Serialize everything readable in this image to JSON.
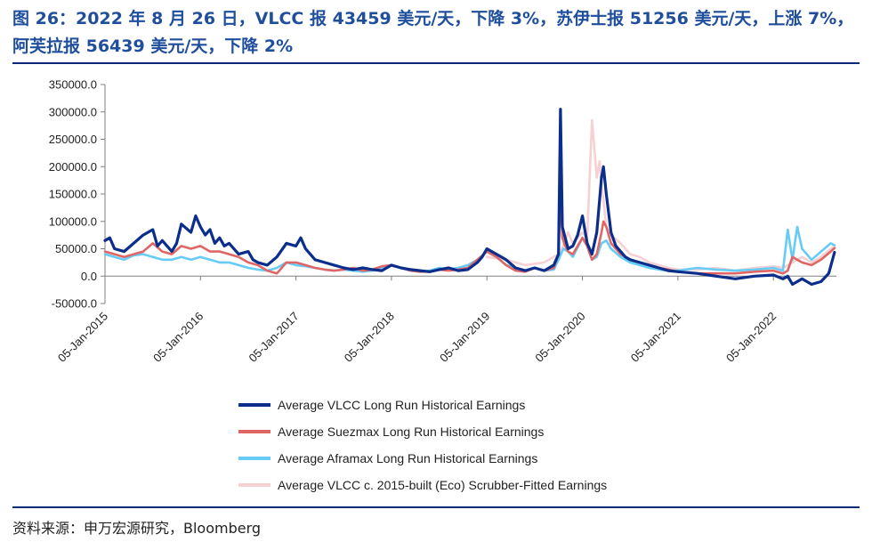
{
  "title": "图 26：2022 年 8 月 26 日，VLCC 报 43459 美元/天，下降 3%，苏伊士报 51256 美元/天，上涨 7%，阿芙拉报 56439 美元/天，下降 2%",
  "source": "资料来源：申万宏源研究，Bloomberg",
  "colors": {
    "title": "#1F4E9C",
    "rule": "#0A2A78",
    "vlcc": "#0B2E8C",
    "suezmax": "#E06666",
    "aframax": "#66CCF5",
    "eco": "#F6D0D3"
  },
  "chart_data": {
    "type": "line",
    "ylim": [
      -50000,
      350000
    ],
    "yticks": [
      "350000.0",
      "300000.0",
      "250000.0",
      "200000.0",
      "150000.0",
      "100000.0",
      "50000.0",
      "0.0",
      "-50000.0"
    ],
    "ytick_values": [
      350000,
      300000,
      250000,
      200000,
      150000,
      100000,
      50000,
      0,
      -50000
    ],
    "xlim": [
      2015.0,
      2022.66
    ],
    "xticks": [
      "05-Jan-2015",
      "05-Jan-2016",
      "05-Jan-2017",
      "05-Jan-2018",
      "05-Jan-2019",
      "05-Jan-2020",
      "05-Jan-2021",
      "05-Jan-2022"
    ],
    "xtick_values": [
      2015,
      2016,
      2017,
      2018,
      2019,
      2020,
      2021,
      2022
    ],
    "legend": [
      "Average VLCC Long Run Historical Earnings",
      "Average Suezmax Long Run Historical Earnings",
      "Average Aframax Long Run Historical Earnings",
      "Average VLCC c. 2015-built (Eco) Scrubber-Fitted Earnings"
    ],
    "series": [
      {
        "name": "Average VLCC Long Run Historical Earnings",
        "color": "#0B2E8C",
        "width": 3.2,
        "x": [
          2015.0,
          2015.05,
          2015.1,
          2015.2,
          2015.3,
          2015.4,
          2015.5,
          2015.55,
          2015.6,
          2015.7,
          2015.75,
          2015.8,
          2015.9,
          2015.95,
          2016.0,
          2016.05,
          2016.1,
          2016.15,
          2016.2,
          2016.25,
          2016.3,
          2016.4,
          2016.5,
          2016.55,
          2016.6,
          2016.7,
          2016.8,
          2016.9,
          2017.0,
          2017.05,
          2017.1,
          2017.15,
          2017.2,
          2017.3,
          2017.4,
          2017.5,
          2017.6,
          2017.7,
          2017.8,
          2017.9,
          2018.0,
          2018.1,
          2018.2,
          2018.3,
          2018.4,
          2018.5,
          2018.6,
          2018.7,
          2018.8,
          2018.9,
          2018.95,
          2019.0,
          2019.1,
          2019.2,
          2019.3,
          2019.4,
          2019.5,
          2019.6,
          2019.7,
          2019.75,
          2019.77,
          2019.79,
          2019.82,
          2019.85,
          2019.9,
          2019.95,
          2020.0,
          2020.05,
          2020.1,
          2020.15,
          2020.2,
          2020.22,
          2020.25,
          2020.3,
          2020.35,
          2020.4,
          2020.45,
          2020.5,
          2020.6,
          2020.7,
          2020.8,
          2020.9,
          2021.0,
          2021.2,
          2021.4,
          2021.6,
          2021.8,
          2022.0,
          2022.1,
          2022.15,
          2022.2,
          2022.3,
          2022.4,
          2022.5,
          2022.58,
          2022.64
        ],
        "y": [
          65000,
          70000,
          50000,
          45000,
          60000,
          75000,
          85000,
          55000,
          65000,
          45000,
          60000,
          95000,
          80000,
          110000,
          90000,
          75000,
          85000,
          60000,
          70000,
          55000,
          60000,
          40000,
          45000,
          30000,
          25000,
          20000,
          35000,
          60000,
          55000,
          70000,
          50000,
          40000,
          30000,
          25000,
          20000,
          15000,
          12000,
          15000,
          12000,
          10000,
          20000,
          15000,
          12000,
          10000,
          8000,
          12000,
          15000,
          10000,
          12000,
          25000,
          35000,
          50000,
          40000,
          30000,
          15000,
          10000,
          15000,
          10000,
          20000,
          40000,
          305000,
          90000,
          70000,
          50000,
          55000,
          75000,
          110000,
          60000,
          40000,
          80000,
          180000,
          200000,
          150000,
          80000,
          55000,
          45000,
          35000,
          30000,
          25000,
          20000,
          15000,
          10000,
          8000,
          5000,
          0,
          -5000,
          0,
          2000,
          -5000,
          0,
          -15000,
          -5000,
          -15000,
          -10000,
          5000,
          43459
        ]
      },
      {
        "name": "Average Suezmax Long Run Historical Earnings",
        "color": "#E06666",
        "width": 2.6,
        "x": [
          2015.0,
          2015.1,
          2015.2,
          2015.3,
          2015.4,
          2015.5,
          2015.6,
          2015.7,
          2015.8,
          2015.9,
          2016.0,
          2016.1,
          2016.2,
          2016.3,
          2016.4,
          2016.5,
          2016.6,
          2016.7,
          2016.8,
          2016.9,
          2017.0,
          2017.1,
          2017.2,
          2017.3,
          2017.4,
          2017.5,
          2017.6,
          2017.7,
          2017.8,
          2017.9,
          2018.0,
          2018.1,
          2018.2,
          2018.3,
          2018.4,
          2018.5,
          2018.6,
          2018.7,
          2018.8,
          2018.9,
          2019.0,
          2019.1,
          2019.2,
          2019.3,
          2019.4,
          2019.5,
          2019.6,
          2019.7,
          2019.75,
          2019.77,
          2019.79,
          2019.82,
          2019.85,
          2019.9,
          2020.0,
          2020.05,
          2020.1,
          2020.15,
          2020.2,
          2020.22,
          2020.25,
          2020.3,
          2020.4,
          2020.5,
          2020.6,
          2020.7,
          2020.8,
          2020.9,
          2021.0,
          2021.2,
          2021.4,
          2021.6,
          2021.8,
          2022.0,
          2022.1,
          2022.15,
          2022.2,
          2022.3,
          2022.4,
          2022.5,
          2022.6,
          2022.64
        ],
        "y": [
          45000,
          40000,
          35000,
          40000,
          45000,
          60000,
          45000,
          40000,
          55000,
          50000,
          55000,
          45000,
          45000,
          40000,
          35000,
          25000,
          20000,
          10000,
          5000,
          25000,
          25000,
          20000,
          15000,
          12000,
          10000,
          12000,
          15000,
          10000,
          12000,
          18000,
          20000,
          15000,
          10000,
          8000,
          8000,
          12000,
          10000,
          12000,
          15000,
          30000,
          45000,
          35000,
          20000,
          10000,
          8000,
          15000,
          10000,
          15000,
          40000,
          160000,
          70000,
          55000,
          45000,
          40000,
          70000,
          55000,
          30000,
          40000,
          80000,
          100000,
          90000,
          60000,
          40000,
          30000,
          25000,
          20000,
          15000,
          12000,
          8000,
          5000,
          5000,
          5000,
          8000,
          10000,
          5000,
          10000,
          35000,
          25000,
          20000,
          30000,
          45000,
          51256
        ]
      },
      {
        "name": "Average Aframax Long Run Historical Earnings",
        "color": "#66CCF5",
        "width": 2.6,
        "x": [
          2015.0,
          2015.1,
          2015.2,
          2015.3,
          2015.4,
          2015.5,
          2015.6,
          2015.7,
          2015.8,
          2015.9,
          2016.0,
          2016.1,
          2016.2,
          2016.3,
          2016.4,
          2016.5,
          2016.6,
          2016.7,
          2016.8,
          2016.9,
          2017.0,
          2017.1,
          2017.2,
          2017.3,
          2017.4,
          2017.5,
          2017.6,
          2017.7,
          2017.8,
          2017.9,
          2018.0,
          2018.1,
          2018.2,
          2018.3,
          2018.4,
          2018.5,
          2018.6,
          2018.7,
          2018.8,
          2018.9,
          2019.0,
          2019.1,
          2019.2,
          2019.3,
          2019.4,
          2019.5,
          2019.6,
          2019.7,
          2019.75,
          2019.8,
          2019.85,
          2019.9,
          2020.0,
          2020.05,
          2020.1,
          2020.15,
          2020.2,
          2020.25,
          2020.3,
          2020.4,
          2020.5,
          2020.6,
          2020.7,
          2020.8,
          2020.9,
          2021.0,
          2021.2,
          2021.4,
          2021.6,
          2021.8,
          2022.0,
          2022.1,
          2022.15,
          2022.2,
          2022.25,
          2022.3,
          2022.4,
          2022.5,
          2022.6,
          2022.64
        ],
        "y": [
          40000,
          35000,
          30000,
          38000,
          40000,
          35000,
          30000,
          30000,
          35000,
          30000,
          35000,
          30000,
          25000,
          25000,
          20000,
          15000,
          12000,
          10000,
          15000,
          25000,
          20000,
          18000,
          15000,
          12000,
          10000,
          12000,
          10000,
          8000,
          10000,
          15000,
          20000,
          15000,
          10000,
          8000,
          10000,
          15000,
          12000,
          15000,
          20000,
          30000,
          45000,
          35000,
          20000,
          15000,
          10000,
          15000,
          10000,
          12000,
          30000,
          50000,
          45000,
          35000,
          70000,
          55000,
          30000,
          35000,
          60000,
          65000,
          50000,
          35000,
          25000,
          20000,
          15000,
          12000,
          10000,
          10000,
          15000,
          12000,
          10000,
          12000,
          15000,
          10000,
          85000,
          30000,
          90000,
          50000,
          30000,
          45000,
          60000,
          56439
        ]
      },
      {
        "name": "Average VLCC c. 2015-built (Eco) Scrubber-Fitted Earnings",
        "color": "#F6D0D3",
        "width": 2.6,
        "x": [
          2019.0,
          2019.2,
          2019.4,
          2019.6,
          2019.75,
          2019.8,
          2019.85,
          2019.9,
          2020.0,
          2020.05,
          2020.1,
          2020.15,
          2020.18,
          2020.2,
          2020.22,
          2020.25,
          2020.3,
          2020.4,
          2020.5,
          2020.6,
          2020.7,
          2020.8,
          2020.9,
          2021.0,
          2021.2,
          2021.4,
          2021.6,
          2021.8,
          2022.0,
          2022.1,
          2022.2,
          2022.3,
          2022.4,
          2022.5,
          2022.6,
          2022.64
        ],
        "y": [
          35000,
          30000,
          20000,
          25000,
          40000,
          55000,
          80000,
          60000,
          80000,
          70000,
          285000,
          180000,
          210000,
          160000,
          140000,
          90000,
          75000,
          60000,
          40000,
          35000,
          25000,
          20000,
          15000,
          12000,
          12000,
          15000,
          10000,
          15000,
          18000,
          15000,
          25000,
          35000,
          25000,
          35000,
          50000,
          55000
        ]
      }
    ]
  }
}
